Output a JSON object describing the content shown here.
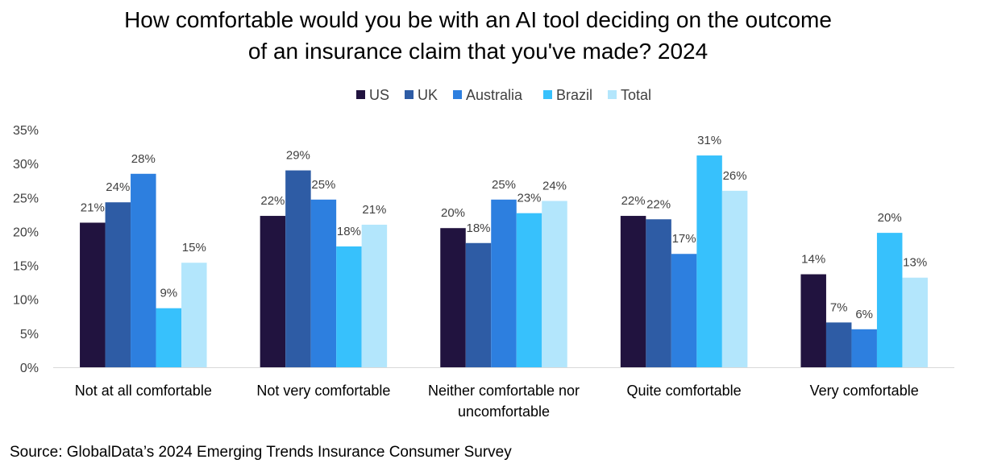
{
  "chart_data": {
    "type": "bar",
    "title": "How comfortable would you be with an AI tool deciding on the outcome of an insurance claim that you've made? 2024",
    "title_lines": [
      "How comfortable would you be with an AI tool deciding on the outcome",
      "of an insurance claim that you've made? 2024"
    ],
    "categories": [
      "Not at all comfortable",
      "Not very comfortable",
      "Neither comfortable nor uncomfortable",
      "Quite comfortable",
      "Very comfortable"
    ],
    "category_lines": [
      [
        "Not at all comfortable"
      ],
      [
        "Not very comfortable"
      ],
      [
        "Neither comfortable nor",
        "uncomfortable"
      ],
      [
        "Quite comfortable"
      ],
      [
        "Very comfortable"
      ]
    ],
    "series": [
      {
        "name": "US",
        "color": "#21133f",
        "values": [
          21,
          22,
          20,
          22,
          14
        ],
        "plot_values": [
          21.3,
          22.3,
          20.5,
          22.3,
          13.7
        ]
      },
      {
        "name": "UK",
        "color": "#2e5ca5",
        "values": [
          24,
          29,
          18,
          22,
          7
        ],
        "plot_values": [
          24.3,
          29.0,
          18.3,
          21.8,
          6.6
        ]
      },
      {
        "name": "Australia",
        "color": "#2d7fdf",
        "values": [
          28,
          25,
          25,
          17,
          6
        ],
        "plot_values": [
          28.5,
          24.7,
          24.7,
          16.7,
          5.6
        ]
      },
      {
        "name": "Brazil",
        "color": "#37c1fc",
        "values": [
          9,
          18,
          23,
          31,
          20
        ],
        "plot_values": [
          8.7,
          17.8,
          22.7,
          31.2,
          19.8
        ]
      },
      {
        "name": "Total",
        "color": "#b3e6fc",
        "values": [
          15,
          21,
          24,
          26,
          13
        ],
        "plot_values": [
          15.4,
          21.0,
          24.5,
          26.0,
          13.2
        ]
      }
    ],
    "value_suffix": "%",
    "ylim": [
      0,
      35
    ],
    "yticks": [
      "0%",
      "5%",
      "10%",
      "15%",
      "20%",
      "25%",
      "30%",
      "35%"
    ],
    "ytick_values": [
      0,
      5,
      10,
      15,
      20,
      25,
      30,
      35
    ],
    "xlabel": "",
    "ylabel": "",
    "grid": false,
    "legend_position": "top-center"
  },
  "source": "Source: GlobalData’s 2024 Emerging Trends Insurance Consumer Survey"
}
